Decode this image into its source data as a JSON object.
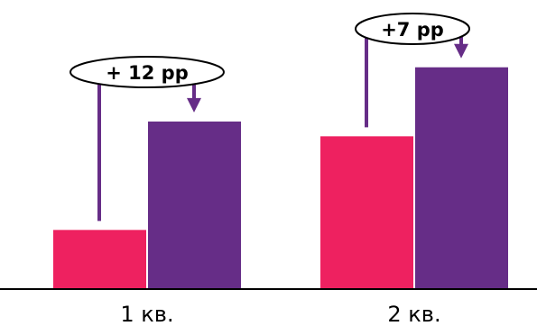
{
  "chart_data": {
    "type": "bar",
    "title": "",
    "xlabel": "",
    "ylabel": "",
    "categories": [
      "1 кв.",
      "2 кв."
    ],
    "series": [
      {
        "color": "#ee2160",
        "values": [
          12,
          31
        ]
      },
      {
        "color": "#662d87",
        "values": [
          34,
          45
        ]
      }
    ],
    "ylim": [
      0,
      55
    ],
    "grid": false,
    "legend": "none",
    "annotations": [
      {
        "category_index": 0,
        "text": "+ 12 pp"
      },
      {
        "category_index": 1,
        "text": "+7 pp"
      }
    ],
    "arrow_color": "#662d87"
  }
}
